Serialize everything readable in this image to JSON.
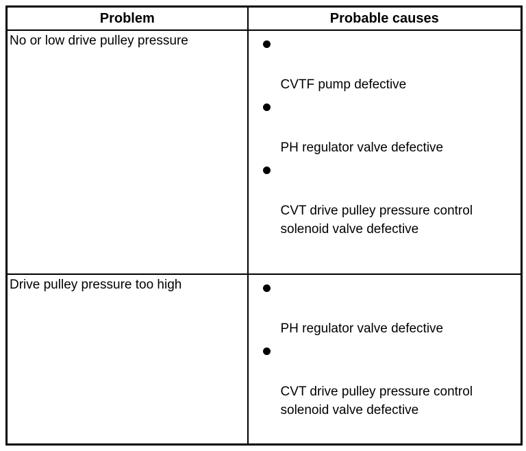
{
  "page": {
    "background_color": "#ffffff",
    "border_color": "#000000",
    "text_color": "#000000"
  },
  "table": {
    "headers": {
      "problem": "Problem",
      "causes": "Probable causes"
    },
    "rows": [
      {
        "problem": "No or low drive pulley pressure",
        "causes": [
          "CVTF pump defective",
          "PH regulator valve defective",
          "CVT drive pulley pressure control solenoid valve defective"
        ]
      },
      {
        "problem": "Drive pulley pressure too high",
        "causes": [
          "PH regulator valve defective",
          "CVT drive pulley pressure control solenoid valve defective"
        ]
      }
    ]
  }
}
